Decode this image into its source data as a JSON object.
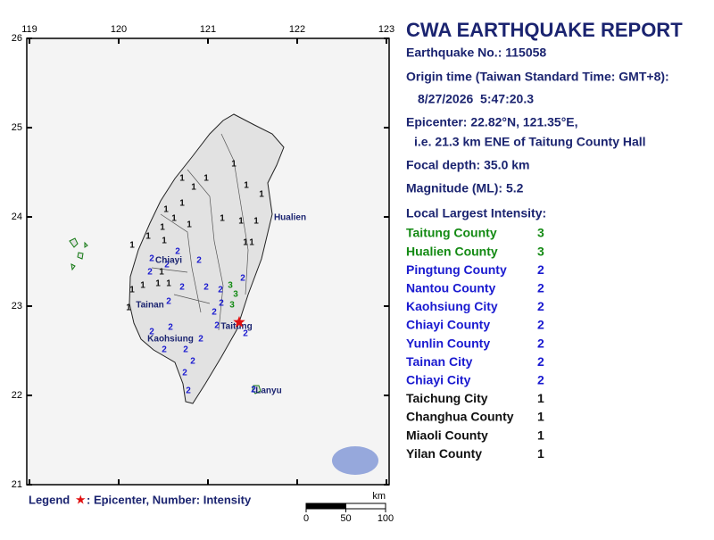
{
  "map": {
    "lonlim": [
      119,
      123
    ],
    "latlim": [
      21,
      26
    ],
    "lonticks": [
      119,
      120,
      121,
      122,
      123
    ],
    "latticks": [
      21,
      22,
      23,
      24,
      25,
      26
    ],
    "epicenter": {
      "lat": 22.82,
      "lon": 121.35,
      "color": "#e01010"
    },
    "intensity_colors": {
      "1": "#111111",
      "2": "#1a1ad0",
      "3": "#138a13"
    },
    "places": [
      {
        "name": "Hualien",
        "lon": 121.92,
        "lat": 23.99
      },
      {
        "name": "Chiayi",
        "lon": 120.56,
        "lat": 23.51
      },
      {
        "name": "Tainan",
        "lon": 120.35,
        "lat": 23.01
      },
      {
        "name": "Kaohsiung",
        "lon": 120.58,
        "lat": 22.63
      },
      {
        "name": "Taitung",
        "lon": 121.32,
        "lat": 22.77
      },
      {
        "name": "Lanyu",
        "lon": 121.68,
        "lat": 22.05
      }
    ],
    "stations": [
      {
        "lon": 120.71,
        "lat": 24.43,
        "intensity": 1
      },
      {
        "lon": 120.84,
        "lat": 24.33,
        "intensity": 1
      },
      {
        "lon": 120.98,
        "lat": 24.43,
        "intensity": 1
      },
      {
        "lon": 121.29,
        "lat": 24.59,
        "intensity": 1
      },
      {
        "lon": 121.43,
        "lat": 24.35,
        "intensity": 1
      },
      {
        "lon": 121.6,
        "lat": 24.25,
        "intensity": 1
      },
      {
        "lon": 120.71,
        "lat": 24.15,
        "intensity": 1
      },
      {
        "lon": 120.53,
        "lat": 24.08,
        "intensity": 1
      },
      {
        "lon": 120.62,
        "lat": 23.98,
        "intensity": 1
      },
      {
        "lon": 120.49,
        "lat": 23.88,
        "intensity": 1
      },
      {
        "lon": 120.79,
        "lat": 23.91,
        "intensity": 1
      },
      {
        "lon": 121.16,
        "lat": 23.98,
        "intensity": 1
      },
      {
        "lon": 121.37,
        "lat": 23.95,
        "intensity": 1
      },
      {
        "lon": 121.54,
        "lat": 23.95,
        "intensity": 1
      },
      {
        "lon": 121.42,
        "lat": 23.71,
        "intensity": 1
      },
      {
        "lon": 121.49,
        "lat": 23.71,
        "intensity": 1
      },
      {
        "lon": 120.33,
        "lat": 23.78,
        "intensity": 1
      },
      {
        "lon": 120.15,
        "lat": 23.68,
        "intensity": 1
      },
      {
        "lon": 120.51,
        "lat": 23.73,
        "intensity": 1
      },
      {
        "lon": 120.66,
        "lat": 23.61,
        "intensity": 2
      },
      {
        "lon": 120.37,
        "lat": 23.53,
        "intensity": 2
      },
      {
        "lon": 120.54,
        "lat": 23.46,
        "intensity": 2
      },
      {
        "lon": 120.9,
        "lat": 23.51,
        "intensity": 2
      },
      {
        "lon": 120.35,
        "lat": 23.38,
        "intensity": 2
      },
      {
        "lon": 120.48,
        "lat": 23.38,
        "intensity": 1
      },
      {
        "lon": 120.15,
        "lat": 23.18,
        "intensity": 1
      },
      {
        "lon": 120.27,
        "lat": 23.23,
        "intensity": 1
      },
      {
        "lon": 120.44,
        "lat": 23.25,
        "intensity": 1
      },
      {
        "lon": 120.56,
        "lat": 23.25,
        "intensity": 1
      },
      {
        "lon": 120.71,
        "lat": 23.21,
        "intensity": 2
      },
      {
        "lon": 120.98,
        "lat": 23.21,
        "intensity": 2
      },
      {
        "lon": 121.14,
        "lat": 23.18,
        "intensity": 2
      },
      {
        "lon": 121.25,
        "lat": 23.23,
        "intensity": 3
      },
      {
        "lon": 121.31,
        "lat": 23.13,
        "intensity": 3
      },
      {
        "lon": 121.39,
        "lat": 23.31,
        "intensity": 2
      },
      {
        "lon": 120.11,
        "lat": 22.98,
        "intensity": 1
      },
      {
        "lon": 120.56,
        "lat": 23.05,
        "intensity": 2
      },
      {
        "lon": 121.15,
        "lat": 23.03,
        "intensity": 2
      },
      {
        "lon": 121.27,
        "lat": 23.01,
        "intensity": 3
      },
      {
        "lon": 121.07,
        "lat": 22.93,
        "intensity": 2
      },
      {
        "lon": 121.1,
        "lat": 22.78,
        "intensity": 2
      },
      {
        "lon": 120.58,
        "lat": 22.76,
        "intensity": 2
      },
      {
        "lon": 120.37,
        "lat": 22.71,
        "intensity": 2
      },
      {
        "lon": 120.92,
        "lat": 22.63,
        "intensity": 2
      },
      {
        "lon": 121.42,
        "lat": 22.69,
        "intensity": 2
      },
      {
        "lon": 120.51,
        "lat": 22.51,
        "intensity": 2
      },
      {
        "lon": 120.75,
        "lat": 22.51,
        "intensity": 2
      },
      {
        "lon": 120.83,
        "lat": 22.38,
        "intensity": 2
      },
      {
        "lon": 120.74,
        "lat": 22.25,
        "intensity": 2
      },
      {
        "lon": 120.78,
        "lat": 22.05,
        "intensity": 2
      },
      {
        "lon": 121.51,
        "lat": 22.06,
        "intensity": 2
      }
    ],
    "legend": {
      "title": "Legend",
      "symbol": "★",
      "text": ": Epicenter, Number: Intensity"
    },
    "scale": {
      "unit": "km",
      "ticks": [
        0,
        50,
        100
      ]
    }
  },
  "report": {
    "title": "CWA EARTHQUAKE REPORT",
    "earthquake_no": "Earthquake No.: 115058",
    "origin_label": "Origin time (Taiwan Standard Time: GMT+8):",
    "origin_time": "8/27/2026  5:47:20.3",
    "epicenter": "Epicenter: 22.82°N, 121.35°E,",
    "epicenter_detail": "i.e. 21.3 km ENE of Taitung County Hall",
    "focal_depth": "Focal depth: 35.0 km",
    "magnitude": "Magnitude (ML): 5.2",
    "intensity_heading": "Local Largest Intensity:",
    "intensities": [
      {
        "area": "Taitung County",
        "value": 3,
        "color": "#138a13"
      },
      {
        "area": "Hualien County",
        "value": 3,
        "color": "#138a13"
      },
      {
        "area": "Pingtung County",
        "value": 2,
        "color": "#1a1ad0"
      },
      {
        "area": "Nantou County",
        "value": 2,
        "color": "#1a1ad0"
      },
      {
        "area": "Kaohsiung City",
        "value": 2,
        "color": "#1a1ad0"
      },
      {
        "area": "Chiayi County",
        "value": 2,
        "color": "#1a1ad0"
      },
      {
        "area": "Yunlin County",
        "value": 2,
        "color": "#1a1ad0"
      },
      {
        "area": "Tainan City",
        "value": 2,
        "color": "#1a1ad0"
      },
      {
        "area": "Chiayi City",
        "value": 2,
        "color": "#1a1ad0"
      },
      {
        "area": "Taichung City",
        "value": 1,
        "color": "#111111"
      },
      {
        "area": "Changhua County",
        "value": 1,
        "color": "#111111"
      },
      {
        "area": "Miaoli County",
        "value": 1,
        "color": "#111111"
      },
      {
        "area": "Yilan County",
        "value": 1,
        "color": "#111111"
      }
    ]
  }
}
